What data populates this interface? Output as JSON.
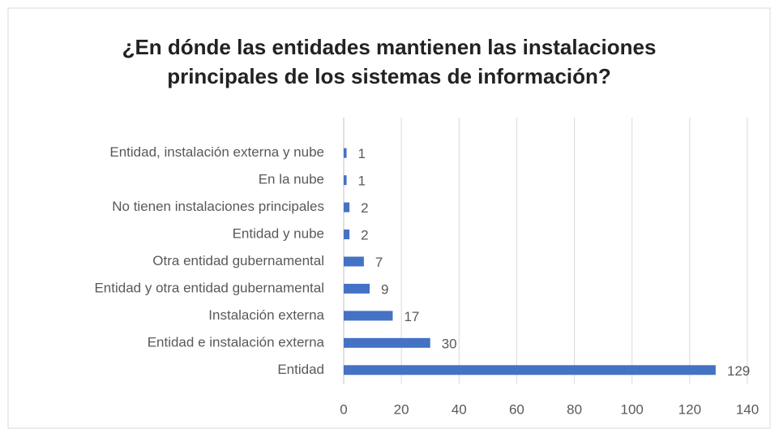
{
  "chart_data": {
    "type": "barh",
    "title": "¿En dónde las entidades mantienen las instalaciones principales de los sistemas de información?",
    "categories": [
      "Entidad, instalación externa y nube",
      "En la nube",
      "No tienen instalaciones principales",
      "Entidad y nube",
      "Otra entidad gubernamental",
      "Entidad y otra entidad gubernamental",
      "Instalación externa",
      "Entidad e instalación externa",
      "Entidad"
    ],
    "values": [
      1,
      1,
      2,
      2,
      7,
      9,
      17,
      30,
      129
    ],
    "color": "#4472c4",
    "xlim": [
      0,
      140
    ],
    "xticks": [
      0,
      20,
      40,
      60,
      80,
      100,
      120,
      140
    ],
    "grid": true
  }
}
